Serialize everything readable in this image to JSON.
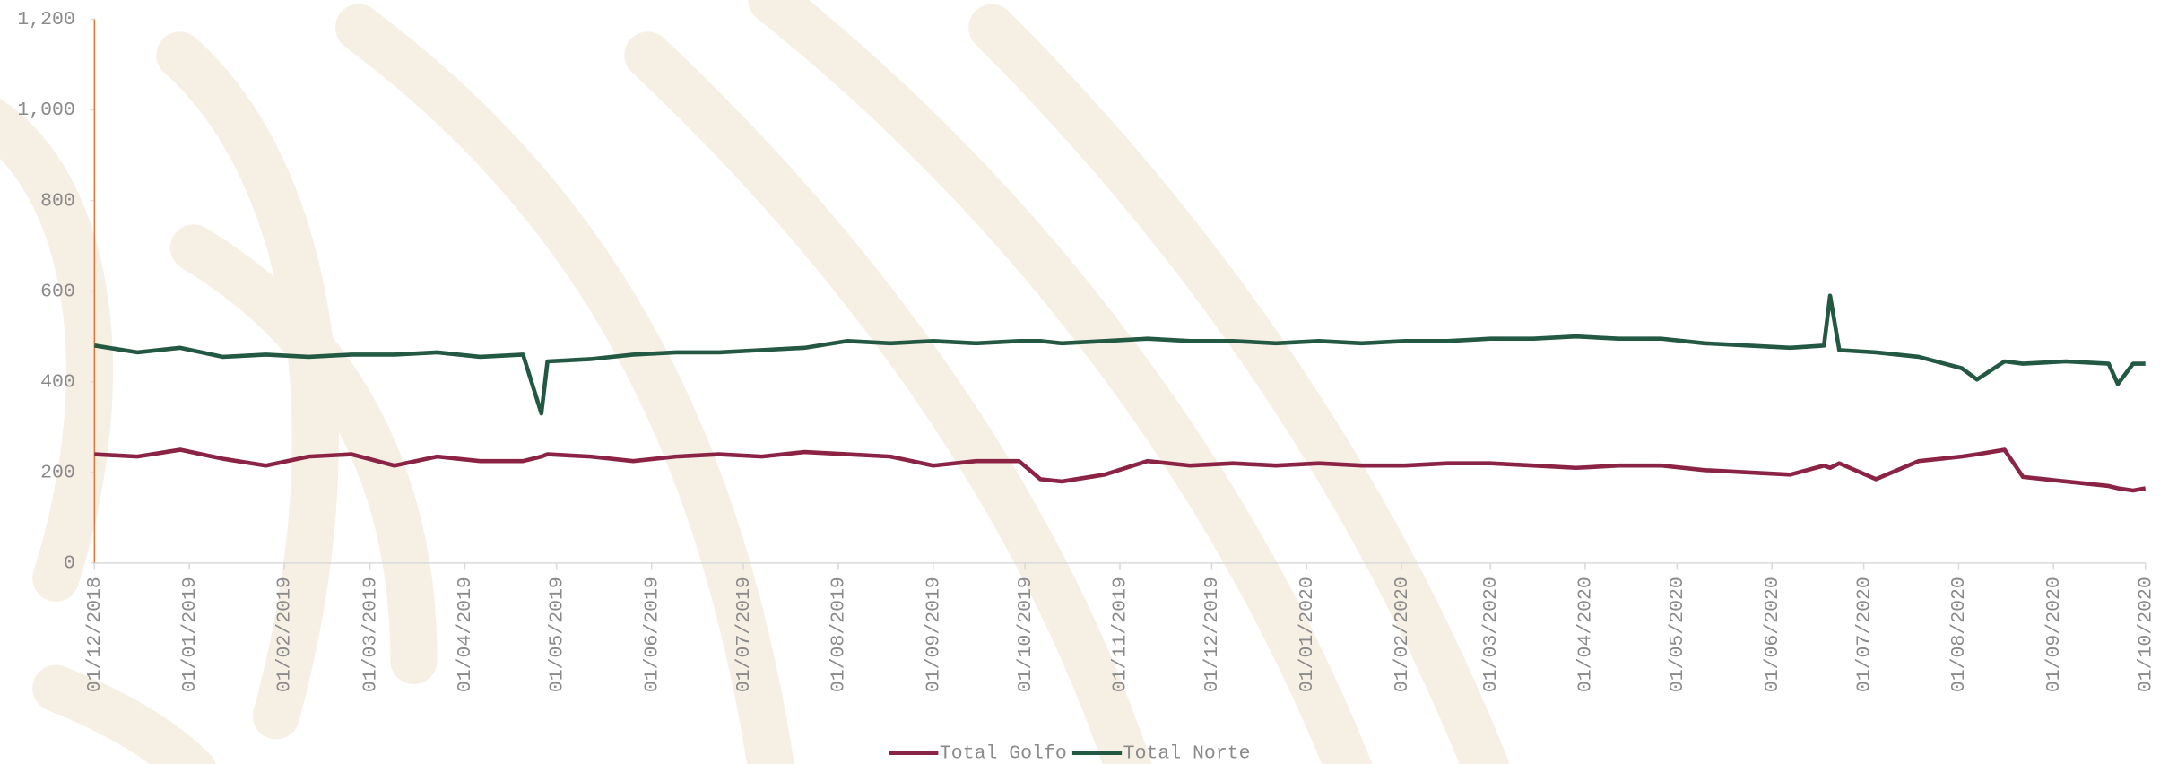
{
  "chart_data": {
    "type": "line",
    "x": [
      "01/12/2018",
      "15/12/2018",
      "29/12/2018",
      "12/01/2019",
      "26/01/2019",
      "09/02/2019",
      "23/02/2019",
      "09/03/2019",
      "23/03/2019",
      "06/04/2019",
      "20/04/2019",
      "26/04/2019",
      "28/04/2019",
      "12/05/2019",
      "26/05/2019",
      "09/06/2019",
      "23/06/2019",
      "07/07/2019",
      "21/07/2019",
      "04/08/2019",
      "18/08/2019",
      "01/09/2019",
      "15/09/2019",
      "29/09/2019",
      "06/10/2019",
      "13/10/2019",
      "27/10/2019",
      "10/11/2019",
      "24/11/2019",
      "08/12/2019",
      "22/12/2019",
      "05/01/2020",
      "19/01/2020",
      "02/02/2020",
      "16/02/2020",
      "01/03/2020",
      "15/03/2020",
      "29/03/2020",
      "12/04/2020",
      "26/04/2020",
      "10/05/2020",
      "24/05/2020",
      "07/06/2020",
      "18/06/2020",
      "20/06/2020",
      "23/06/2020",
      "05/07/2020",
      "19/07/2020",
      "02/08/2020",
      "07/08/2020",
      "16/08/2020",
      "22/08/2020",
      "05/09/2020",
      "19/09/2020",
      "22/09/2020",
      "27/09/2020",
      "01/10/2020"
    ],
    "series": [
      {
        "name": "Total Golfo",
        "color": "#8b2345",
        "values": [
          240,
          235,
          250,
          230,
          215,
          235,
          240,
          215,
          235,
          225,
          225,
          235,
          240,
          235,
          225,
          235,
          240,
          235,
          245,
          240,
          235,
          215,
          225,
          225,
          185,
          180,
          195,
          225,
          215,
          220,
          215,
          220,
          215,
          215,
          220,
          220,
          215,
          210,
          215,
          215,
          205,
          200,
          195,
          215,
          210,
          220,
          185,
          225,
          235,
          240,
          250,
          190,
          180,
          170,
          165,
          160,
          165
        ]
      },
      {
        "name": "Total Norte",
        "color": "#235843",
        "values": [
          480,
          465,
          475,
          455,
          460,
          455,
          460,
          460,
          465,
          455,
          460,
          330,
          445,
          450,
          460,
          465,
          465,
          470,
          475,
          490,
          485,
          490,
          485,
          490,
          490,
          485,
          490,
          495,
          490,
          490,
          485,
          490,
          485,
          490,
          490,
          495,
          495,
          500,
          495,
          495,
          485,
          480,
          475,
          480,
          590,
          470,
          465,
          455,
          430,
          405,
          445,
          440,
          445,
          440,
          395,
          440,
          440
        ]
      }
    ],
    "xlim": [
      "01/12/2018",
      "01/10/2020"
    ],
    "xticks": [
      "01/12/2018",
      "01/01/2019",
      "01/02/2019",
      "01/03/2019",
      "01/04/2019",
      "01/05/2019",
      "01/06/2019",
      "01/07/2019",
      "01/08/2019",
      "01/09/2019",
      "01/10/2019",
      "01/11/2019",
      "01/12/2019",
      "01/01/2020",
      "01/02/2020",
      "01/03/2020",
      "01/04/2020",
      "01/05/2020",
      "01/06/2020",
      "01/07/2020",
      "01/08/2020",
      "01/09/2020",
      "01/10/2020"
    ],
    "ylim": [
      0,
      1200
    ],
    "yticks": [
      0,
      200,
      400,
      600,
      800,
      {
        "value": 1000,
        "label": "1,000"
      },
      {
        "value": 1200,
        "label": "1,200"
      }
    ],
    "grid": false,
    "legend": "bottom"
  }
}
